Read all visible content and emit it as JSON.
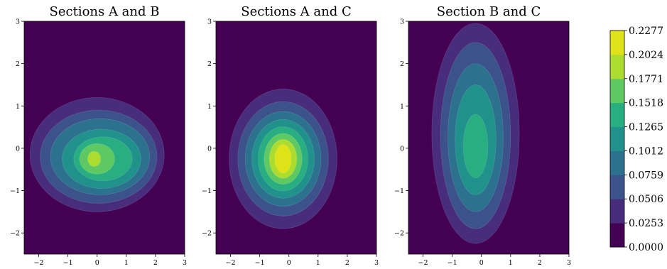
{
  "chart_data": {
    "type": "contourf",
    "colormap": "viridis",
    "levels": [
      0.0,
      0.0253,
      0.0506,
      0.0759,
      0.1012,
      0.1265,
      0.1518,
      0.1771,
      0.2024,
      0.2277
    ],
    "level_labels": [
      "0.0000",
      "0.0253",
      "0.0506",
      "0.0759",
      "0.1012",
      "0.1265",
      "0.1518",
      "0.1771",
      "0.2024",
      "0.2277"
    ],
    "colorbar_colors": [
      "#440154",
      "#472d7b",
      "#3b528b",
      "#2c728e",
      "#21918c",
      "#28ae80",
      "#5ec962",
      "#addc30",
      "#dde318"
    ],
    "panels": [
      {
        "title": "Sections A and B",
        "xlim": [
          -2.5,
          3
        ],
        "ylim": [
          -2.5,
          3
        ],
        "xticks": [
          -2,
          -1,
          0,
          1,
          2,
          3
        ],
        "yticks": [
          -2,
          -1,
          0,
          1,
          2,
          3
        ],
        "xtick_labels": [
          "−2",
          "−1",
          "0",
          "1",
          "2",
          "3"
        ],
        "ytick_labels": [
          "−2",
          "−1",
          "0",
          "1",
          "2",
          "3"
        ],
        "peak_center": [
          -0.1,
          -0.25
        ],
        "peak_value": 0.19,
        "contours": [
          {
            "level": 0.0253,
            "cx": 0.0,
            "cy": -0.15,
            "rx": 2.3,
            "ry": 1.35
          },
          {
            "level": 0.0506,
            "cx": 0.05,
            "cy": -0.2,
            "rx": 2.0,
            "ry": 1.1
          },
          {
            "level": 0.0759,
            "cx": 0.1,
            "cy": -0.2,
            "rx": 1.7,
            "ry": 0.9
          },
          {
            "level": 0.1012,
            "cx": 0.15,
            "cy": -0.25,
            "rx": 1.35,
            "ry": 0.7
          },
          {
            "level": 0.1265,
            "cx": 0.2,
            "cy": -0.25,
            "rx": 1.0,
            "ry": 0.52
          },
          {
            "level": 0.1518,
            "cx": 0.0,
            "cy": -0.25,
            "rx": 0.6,
            "ry": 0.36
          },
          {
            "level": 0.1771,
            "cx": -0.1,
            "cy": -0.25,
            "rx": 0.22,
            "ry": 0.18
          }
        ]
      },
      {
        "title": "Sections A and C",
        "xlim": [
          -2.5,
          3
        ],
        "ylim": [
          -2.5,
          3
        ],
        "xticks": [
          -2,
          -1,
          0,
          1,
          2,
          3
        ],
        "yticks": [
          -2,
          -1,
          0,
          1,
          2,
          3
        ],
        "xtick_labels": [
          "−2",
          "−1",
          "0",
          "1",
          "2",
          "3"
        ],
        "ytick_labels": [
          "−2",
          "−1",
          "0",
          "1",
          "2",
          "3"
        ],
        "peak_center": [
          -0.2,
          -0.25
        ],
        "peak_value": 0.2277,
        "contours": [
          {
            "level": 0.0253,
            "cx": -0.2,
            "cy": -0.25,
            "rx": 1.85,
            "ry": 1.65
          },
          {
            "level": 0.0506,
            "cx": -0.2,
            "cy": -0.25,
            "rx": 1.55,
            "ry": 1.35
          },
          {
            "level": 0.0759,
            "cx": -0.2,
            "cy": -0.25,
            "rx": 1.3,
            "ry": 1.12
          },
          {
            "level": 0.1012,
            "cx": -0.2,
            "cy": -0.25,
            "rx": 1.07,
            "ry": 0.93
          },
          {
            "level": 0.1265,
            "cx": -0.2,
            "cy": -0.25,
            "rx": 0.85,
            "ry": 0.76
          },
          {
            "level": 0.1518,
            "cx": -0.2,
            "cy": -0.25,
            "rx": 0.65,
            "ry": 0.6
          },
          {
            "level": 0.1771,
            "cx": -0.2,
            "cy": -0.25,
            "rx": 0.47,
            "ry": 0.46
          },
          {
            "level": 0.2024,
            "cx": -0.2,
            "cy": -0.25,
            "rx": 0.28,
            "ry": 0.34
          }
        ]
      },
      {
        "title": "Section B and C",
        "xlim": [
          -2.5,
          3
        ],
        "ylim": [
          -2.5,
          3
        ],
        "xticks": [
          -2,
          -1,
          0,
          1,
          2,
          3
        ],
        "yticks": [
          -2,
          -1,
          0,
          1,
          2,
          3
        ],
        "xtick_labels": [
          "−2",
          "−1",
          "0",
          "1",
          "2",
          "3"
        ],
        "ytick_labels": [
          "−2",
          "−1",
          "0",
          "1",
          "2",
          "3"
        ],
        "peak_center": [
          -0.2,
          0.0
        ],
        "peak_value": 0.145,
        "contours": [
          {
            "level": 0.0253,
            "cx": -0.2,
            "cy": 0.35,
            "rx": 1.5,
            "ry": 2.6
          },
          {
            "level": 0.0506,
            "cx": -0.2,
            "cy": 0.3,
            "rx": 1.2,
            "ry": 2.2
          },
          {
            "level": 0.0759,
            "cx": -0.2,
            "cy": 0.25,
            "rx": 0.95,
            "ry": 1.75
          },
          {
            "level": 0.1012,
            "cx": -0.2,
            "cy": 0.2,
            "rx": 0.7,
            "ry": 1.3
          },
          {
            "level": 0.1265,
            "cx": -0.2,
            "cy": 0.05,
            "rx": 0.42,
            "ry": 0.75
          }
        ]
      }
    ]
  }
}
